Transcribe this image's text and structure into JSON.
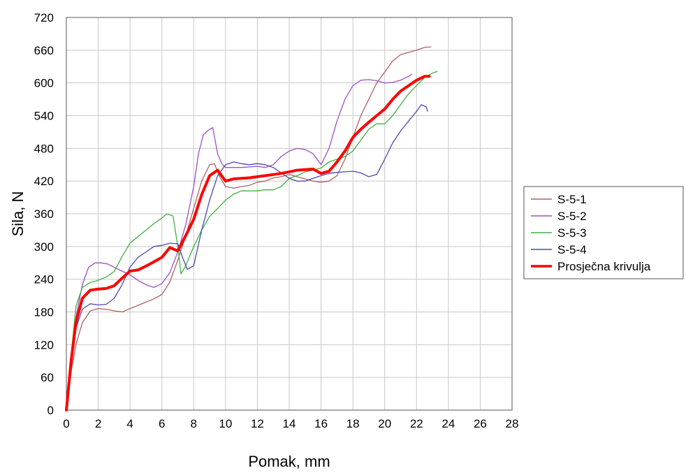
{
  "chart_data": {
    "type": "line",
    "xlabel": "Pomak, mm",
    "ylabel": "Sila, N",
    "xlim": [
      0,
      28
    ],
    "ylim": [
      0,
      720
    ],
    "x_ticks": [
      "0",
      "2",
      "4",
      "6",
      "8",
      "10",
      "12",
      "14",
      "16",
      "18",
      "20",
      "22",
      "24",
      "26",
      "28"
    ],
    "y_ticks": [
      "0",
      "60",
      "120",
      "180",
      "240",
      "300",
      "360",
      "420",
      "480",
      "540",
      "600",
      "660",
      "720"
    ],
    "grid": true,
    "legend_position": "right",
    "series": [
      {
        "name": "S-5-1",
        "color": "#b06060",
        "width": 1.3,
        "points": [
          [
            0,
            0
          ],
          [
            0.3,
            70
          ],
          [
            0.6,
            120
          ],
          [
            1,
            160
          ],
          [
            1.5,
            182
          ],
          [
            2,
            186
          ],
          [
            2.5,
            185
          ],
          [
            3,
            182
          ],
          [
            3.5,
            180
          ],
          [
            4,
            186
          ],
          [
            4.5,
            192
          ],
          [
            5,
            198
          ],
          [
            5.5,
            204
          ],
          [
            6,
            212
          ],
          [
            6.5,
            235
          ],
          [
            7,
            275
          ],
          [
            7.5,
            320
          ],
          [
            8,
            370
          ],
          [
            8.5,
            420
          ],
          [
            9,
            450
          ],
          [
            9.3,
            452
          ],
          [
            9.6,
            430
          ],
          [
            10,
            410
          ],
          [
            10.5,
            407
          ],
          [
            11,
            410
          ],
          [
            11.5,
            412
          ],
          [
            12,
            418
          ],
          [
            12.5,
            420
          ],
          [
            13,
            426
          ],
          [
            13.5,
            428
          ],
          [
            14,
            432
          ],
          [
            14.5,
            428
          ],
          [
            15,
            424
          ],
          [
            15.5,
            420
          ],
          [
            16,
            418
          ],
          [
            16.5,
            420
          ],
          [
            17,
            430
          ],
          [
            17.5,
            460
          ],
          [
            18,
            500
          ],
          [
            18.5,
            540
          ],
          [
            19,
            570
          ],
          [
            19.5,
            600
          ],
          [
            20,
            620
          ],
          [
            20.5,
            640
          ],
          [
            21,
            652
          ],
          [
            21.5,
            656
          ],
          [
            22,
            660
          ],
          [
            22.5,
            665
          ],
          [
            22.9,
            666
          ]
        ]
      },
      {
        "name": "S-5-2",
        "color": "#a050c0",
        "width": 1.3,
        "points": [
          [
            0,
            0
          ],
          [
            0.3,
            90
          ],
          [
            0.6,
            170
          ],
          [
            1,
            230
          ],
          [
            1.4,
            262
          ],
          [
            1.8,
            270
          ],
          [
            2.2,
            270
          ],
          [
            2.6,
            268
          ],
          [
            3,
            262
          ],
          [
            3.5,
            255
          ],
          [
            4,
            248
          ],
          [
            4.5,
            238
          ],
          [
            5,
            230
          ],
          [
            5.5,
            225
          ],
          [
            6,
            232
          ],
          [
            6.5,
            252
          ],
          [
            7,
            290
          ],
          [
            7.5,
            340
          ],
          [
            8,
            410
          ],
          [
            8.3,
            470
          ],
          [
            8.6,
            505
          ],
          [
            9,
            515
          ],
          [
            9.2,
            518
          ],
          [
            9.5,
            470
          ],
          [
            9.8,
            450
          ],
          [
            10,
            445
          ],
          [
            10.5,
            445
          ],
          [
            11,
            445
          ],
          [
            12,
            447
          ],
          [
            12.5,
            445
          ],
          [
            13,
            450
          ],
          [
            13.5,
            465
          ],
          [
            14,
            475
          ],
          [
            14.5,
            480
          ],
          [
            15,
            478
          ],
          [
            15.5,
            470
          ],
          [
            16,
            450
          ],
          [
            16.5,
            480
          ],
          [
            17,
            530
          ],
          [
            17.5,
            570
          ],
          [
            18,
            595
          ],
          [
            18.5,
            605
          ],
          [
            19,
            606
          ],
          [
            19.5,
            604
          ],
          [
            20,
            600
          ],
          [
            20.5,
            601
          ],
          [
            21,
            605
          ],
          [
            21.5,
            612
          ],
          [
            21.7,
            616
          ]
        ]
      },
      {
        "name": "S-5-3",
        "color": "#40b040",
        "width": 1.3,
        "points": [
          [
            0,
            0
          ],
          [
            0.3,
            100
          ],
          [
            0.6,
            190
          ],
          [
            1,
            225
          ],
          [
            1.5,
            234
          ],
          [
            2,
            238
          ],
          [
            2.5,
            244
          ],
          [
            3,
            254
          ],
          [
            3.5,
            282
          ],
          [
            4,
            306
          ],
          [
            4.5,
            318
          ],
          [
            5,
            330
          ],
          [
            5.5,
            342
          ],
          [
            6,
            352
          ],
          [
            6.3,
            360
          ],
          [
            6.7,
            356
          ],
          [
            7,
            300
          ],
          [
            7.2,
            250
          ],
          [
            7.5,
            265
          ],
          [
            8,
            300
          ],
          [
            8.5,
            330
          ],
          [
            9,
            355
          ],
          [
            9.5,
            370
          ],
          [
            10,
            385
          ],
          [
            10.5,
            396
          ],
          [
            11,
            402
          ],
          [
            12,
            402
          ],
          [
            12.5,
            404
          ],
          [
            13,
            404
          ],
          [
            13.5,
            410
          ],
          [
            14,
            425
          ],
          [
            14.5,
            430
          ],
          [
            15,
            437
          ],
          [
            15.5,
            440
          ],
          [
            16,
            444
          ],
          [
            16.5,
            455
          ],
          [
            17,
            460
          ],
          [
            17.5,
            465
          ],
          [
            18,
            475
          ],
          [
            18.5,
            495
          ],
          [
            19,
            515
          ],
          [
            19.5,
            525
          ],
          [
            20,
            525
          ],
          [
            20.5,
            540
          ],
          [
            21,
            560
          ],
          [
            21.5,
            580
          ],
          [
            22,
            595
          ],
          [
            22.5,
            610
          ],
          [
            23,
            618
          ],
          [
            23.3,
            621
          ]
        ]
      },
      {
        "name": "S-5-4",
        "color": "#4a4ab0",
        "width": 1.3,
        "points": [
          [
            0,
            0
          ],
          [
            0.3,
            80
          ],
          [
            0.6,
            150
          ],
          [
            1,
            185
          ],
          [
            1.5,
            195
          ],
          [
            2,
            193
          ],
          [
            2.5,
            194
          ],
          [
            3,
            205
          ],
          [
            3.5,
            230
          ],
          [
            4,
            262
          ],
          [
            4.5,
            280
          ],
          [
            5,
            290
          ],
          [
            5.5,
            300
          ],
          [
            6,
            302
          ],
          [
            6.5,
            306
          ],
          [
            7,
            305
          ],
          [
            7.3,
            280
          ],
          [
            7.6,
            258
          ],
          [
            8,
            265
          ],
          [
            8.5,
            330
          ],
          [
            9,
            385
          ],
          [
            9.5,
            430
          ],
          [
            10,
            450
          ],
          [
            10.5,
            455
          ],
          [
            11,
            452
          ],
          [
            11.5,
            450
          ],
          [
            12,
            452
          ],
          [
            12.5,
            450
          ],
          [
            13,
            445
          ],
          [
            13.5,
            435
          ],
          [
            14,
            425
          ],
          [
            14.5,
            420
          ],
          [
            15,
            420
          ],
          [
            15.5,
            425
          ],
          [
            16,
            430
          ],
          [
            16.5,
            434
          ],
          [
            17,
            436
          ],
          [
            17.5,
            437
          ],
          [
            18,
            438
          ],
          [
            18.5,
            435
          ],
          [
            19,
            428
          ],
          [
            19.5,
            432
          ],
          [
            20,
            460
          ],
          [
            20.5,
            490
          ],
          [
            21,
            512
          ],
          [
            21.5,
            530
          ],
          [
            22,
            548
          ],
          [
            22.3,
            560
          ],
          [
            22.6,
            556
          ],
          [
            22.7,
            548
          ]
        ]
      },
      {
        "name": "Prosječna krivulja",
        "color": "#ff0000",
        "width": 4,
        "points": [
          [
            0,
            0
          ],
          [
            0.3,
            90
          ],
          [
            0.6,
            160
          ],
          [
            1,
            205
          ],
          [
            1.5,
            220
          ],
          [
            2,
            222
          ],
          [
            2.5,
            223
          ],
          [
            3,
            228
          ],
          [
            3.5,
            242
          ],
          [
            4,
            255
          ],
          [
            4.5,
            257
          ],
          [
            5,
            264
          ],
          [
            5.5,
            272
          ],
          [
            6,
            280
          ],
          [
            6.5,
            298
          ],
          [
            7,
            292
          ],
          [
            7.5,
            320
          ],
          [
            8,
            350
          ],
          [
            8.5,
            395
          ],
          [
            9,
            430
          ],
          [
            9.5,
            440
          ],
          [
            10,
            420
          ],
          [
            10.5,
            424
          ],
          [
            11,
            425
          ],
          [
            11.5,
            426
          ],
          [
            12,
            428
          ],
          [
            12.5,
            430
          ],
          [
            13,
            432
          ],
          [
            13.5,
            434
          ],
          [
            14,
            437
          ],
          [
            14.5,
            440
          ],
          [
            15,
            441
          ],
          [
            15.5,
            442
          ],
          [
            16,
            434
          ],
          [
            16.5,
            438
          ],
          [
            17,
            455
          ],
          [
            17.5,
            475
          ],
          [
            18,
            500
          ],
          [
            18.5,
            515
          ],
          [
            19,
            528
          ],
          [
            19.5,
            540
          ],
          [
            20,
            552
          ],
          [
            20.5,
            570
          ],
          [
            21,
            585
          ],
          [
            21.5,
            595
          ],
          [
            22,
            605
          ],
          [
            22.5,
            612
          ],
          [
            22.8,
            612
          ]
        ]
      }
    ]
  }
}
